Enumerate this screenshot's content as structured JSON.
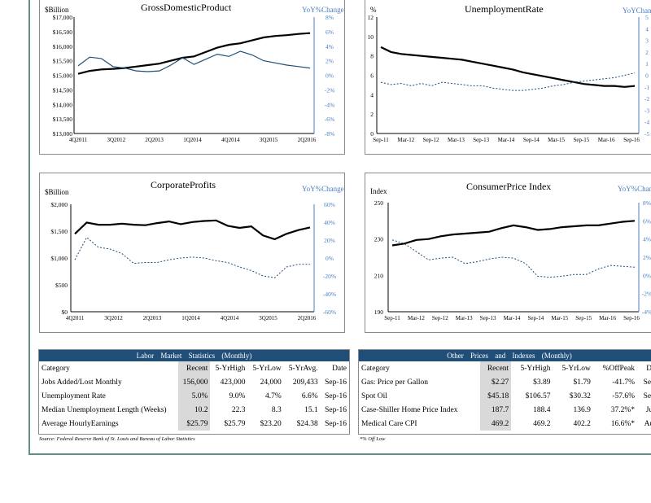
{
  "charts": [
    {
      "id": "gdp",
      "title": "GrossDomesticProduct",
      "left_unit": "$Billion",
      "right_unit": "YoY%Change",
      "left_ticks": [
        "$17,000",
        "$16,500",
        "$16,000",
        "$15,500",
        "$15,000",
        "$14,500",
        "$14,000",
        "$13,500",
        "$13,000"
      ],
      "right_ticks": [
        "8%",
        "6%",
        "4%",
        "2%",
        "0%",
        "-2%",
        "-4%",
        "-6%",
        "-8%"
      ],
      "x_ticks": [
        "4Q2011",
        "3Q2012",
        "2Q2013",
        "1Q2014",
        "4Q2014",
        "3Q2015",
        "2Q2016"
      ]
    },
    {
      "id": "unemployment",
      "title": "UnemploymentRate",
      "left_unit": "%",
      "right_unit": "YoYChange",
      "left_ticks": [
        "12",
        "10",
        "8",
        "6",
        "4",
        "2",
        "0"
      ],
      "right_ticks": [
        "5",
        "4",
        "3",
        "2",
        "1",
        "0",
        "-1",
        "-2",
        "-3",
        "-4",
        "-5"
      ],
      "x_ticks": [
        "Sep-11",
        "Mar-12",
        "Sep-12",
        "Mar-13",
        "Sep-13",
        "Mar-14",
        "Sep-14",
        "Mar-15",
        "Sep-15",
        "Mar-16",
        "Sep-16"
      ]
    },
    {
      "id": "profits",
      "title": "CorporateProfits",
      "left_unit": "$Billion",
      "right_unit": "YoY%Change",
      "left_ticks": [
        "$2,000",
        "$1,500",
        "$1,000",
        "$500",
        "$0"
      ],
      "right_ticks": [
        "60%",
        "40%",
        "20%",
        "0%",
        "-20%",
        "-40%",
        "-60%"
      ],
      "x_ticks": [
        "4Q2011",
        "3Q2012",
        "2Q2013",
        "1Q2014",
        "4Q2014",
        "3Q2015",
        "2Q2016"
      ]
    },
    {
      "id": "cpi",
      "title": "ConsumerPrice Index",
      "left_unit": "Index",
      "right_unit": "YoY%Change",
      "left_ticks": [
        "250",
        "230",
        "210",
        "190"
      ],
      "right_ticks": [
        "8%",
        "6%",
        "4%",
        "2%",
        "0%",
        "-2%",
        "-4%"
      ],
      "x_ticks": [
        "Sep-11",
        "Mar-12",
        "Sep-12",
        "Mar-13",
        "Sep-13",
        "Mar-14",
        "Sep-14",
        "Mar-15",
        "Sep-15",
        "Mar-16",
        "Sep-16"
      ]
    }
  ],
  "chart_data": [
    {
      "type": "line",
      "title": "GrossDomesticProduct",
      "ylabel": "$Billion",
      "ylim": [
        13000,
        17000
      ],
      "y2label": "YoY%Change",
      "y2lim": [
        -8,
        8
      ],
      "series": [
        {
          "axis": "left",
          "style": "solid",
          "values": [
            15050,
            15150,
            15200,
            15220,
            15250,
            15300,
            15350,
            15400,
            15500,
            15600,
            15650,
            15800,
            15950,
            16050,
            16100,
            16200,
            16300,
            16350,
            16380,
            16420,
            16450
          ]
        },
        {
          "axis": "right",
          "style": "solid-thin",
          "values": [
            1.3,
            2.5,
            2.3,
            1.2,
            1.0,
            0.6,
            0.5,
            0.6,
            1.4,
            2.4,
            1.5,
            2.2,
            2.9,
            2.6,
            3.3,
            2.8,
            2.0,
            1.7,
            1.4,
            1.2,
            1.0
          ]
        }
      ]
    },
    {
      "type": "line",
      "title": "UnemploymentRate",
      "ylabel": "%",
      "ylim": [
        0,
        12
      ],
      "y2label": "YoYChange",
      "y2lim": [
        -5,
        5
      ],
      "series": [
        {
          "axis": "left",
          "style": "solid",
          "values": [
            8.9,
            8.4,
            8.2,
            8.1,
            8.0,
            7.9,
            7.8,
            7.7,
            7.6,
            7.4,
            7.2,
            7.0,
            6.8,
            6.6,
            6.3,
            6.1,
            5.9,
            5.7,
            5.5,
            5.3,
            5.1,
            5.0,
            4.9,
            4.9,
            4.8,
            4.9
          ]
        },
        {
          "axis": "right",
          "style": "dotted",
          "values": [
            -0.6,
            -0.8,
            -0.7,
            -0.9,
            -0.7,
            -0.9,
            -0.6,
            -0.7,
            -0.8,
            -0.9,
            -0.9,
            -1.1,
            -1.2,
            -1.3,
            -1.3,
            -1.2,
            -1.1,
            -0.9,
            -0.8,
            -0.6,
            -0.5,
            -0.4,
            -0.3,
            -0.2,
            0.0,
            0.2
          ]
        }
      ]
    },
    {
      "type": "line",
      "title": "CorporateProfits",
      "ylabel": "$Billion",
      "ylim": [
        0,
        2000
      ],
      "y2label": "YoY%Change",
      "y2lim": [
        -60,
        60
      ],
      "series": [
        {
          "axis": "left",
          "style": "solid",
          "values": [
            1450,
            1660,
            1620,
            1620,
            1640,
            1620,
            1610,
            1650,
            1680,
            1630,
            1670,
            1690,
            1700,
            1600,
            1560,
            1590,
            1420,
            1350,
            1450,
            1520,
            1570
          ]
        },
        {
          "axis": "right",
          "style": "dotted",
          "values": [
            -2,
            23,
            12,
            10,
            5,
            -6,
            -5,
            -5,
            -2,
            0,
            1,
            0,
            -3,
            -5,
            -10,
            -14,
            -20,
            -22,
            -10,
            -7,
            -7
          ]
        }
      ]
    },
    {
      "type": "line",
      "title": "ConsumerPrice Index",
      "ylabel": "Index",
      "ylim": [
        190,
        250
      ],
      "y2label": "YoY%Change",
      "y2lim": [
        -4,
        8
      ],
      "series": [
        {
          "axis": "left",
          "style": "solid",
          "values": [
            226.5,
            227.5,
            229.5,
            230.0,
            231.5,
            232.5,
            233.0,
            233.5,
            234.0,
            236.0,
            237.5,
            236.5,
            235.0,
            235.5,
            236.5,
            237.0,
            237.5,
            237.5,
            238.5,
            239.5,
            240.0
          ]
        },
        {
          "axis": "right",
          "style": "dotted",
          "values": [
            3.9,
            3.5,
            2.6,
            1.7,
            1.9,
            2.0,
            1.3,
            1.5,
            1.8,
            2.0,
            1.9,
            1.3,
            -0.1,
            -0.2,
            -0.1,
            0.1,
            0.1,
            0.7,
            1.1,
            1.0,
            0.9
          ]
        }
      ]
    }
  ],
  "labor": {
    "header": "Labor Market Statistics (Monthly)",
    "columns": [
      "Category",
      "Recent",
      "5-YrHigh",
      "5-YrLow",
      "5-YrAvg.",
      "Date"
    ],
    "rows": [
      [
        "Jobs Added/Lost Monthly",
        "156,000",
        "423,000",
        "24,000",
        "209,433",
        "Sep-16"
      ],
      [
        "Unemployment Rate",
        "5.0%",
        "9.0%",
        "4.7%",
        "6.6%",
        "Sep-16"
      ],
      [
        "Median Unemployment Length (Weeks)",
        "10.2",
        "22.3",
        "8.3",
        "15.1",
        "Sep-16"
      ],
      [
        "Average HourlyEarnings",
        "$25.79",
        "$25.79",
        "$23.20",
        "$24.38",
        "Sep-16"
      ]
    ],
    "source": "Source: Federal Reserve Bank of St. Louis and Bureau of Labor Statistics"
  },
  "prices": {
    "header": "Other Prices and Indexes (Monthly)",
    "columns": [
      "Category",
      "Recent",
      "5-YrHigh",
      "5-YrLow",
      "%OffPeak",
      "Dat"
    ],
    "rows": [
      [
        "Gas: Price per Gallon",
        "$2.27",
        "$3.89",
        "$1.79",
        "-41.7%",
        "Sep-"
      ],
      [
        "Spot Oil",
        "$45.18",
        "$106.57",
        "$30.32",
        "-57.6%",
        "Sep-"
      ],
      [
        "Case-Shiller Home Price Index",
        "187.7",
        "188.4",
        "136.9",
        "37.2%*",
        "Jul-"
      ],
      [
        "Medical Care CPI",
        "469.2",
        "469.2",
        "402.2",
        "16.6%*",
        "Aug"
      ]
    ],
    "note": "*% Off Low"
  },
  "colors": {
    "accent_blue": "#1f4e79",
    "right_axis_blue": "#4a7fc1",
    "frame": "#5f8f86"
  }
}
